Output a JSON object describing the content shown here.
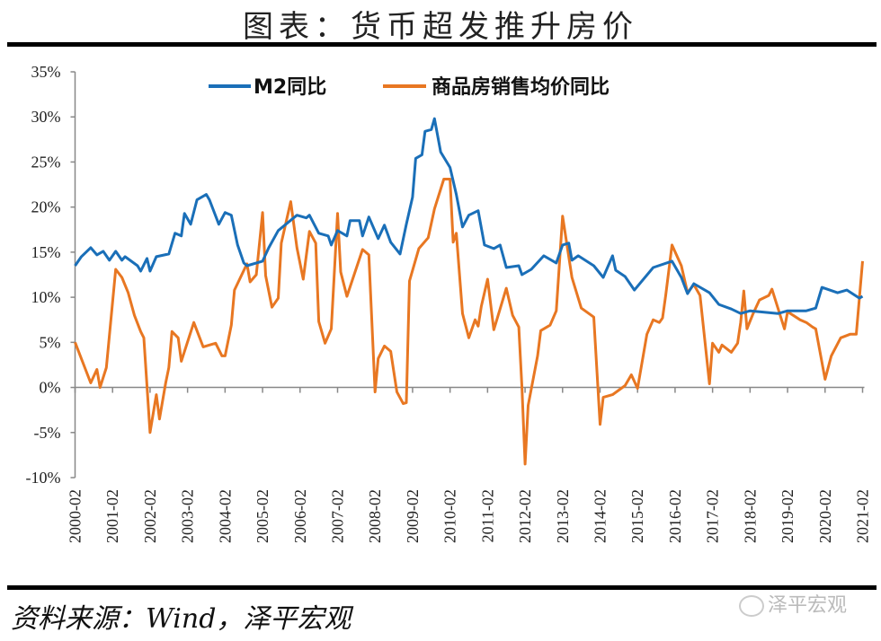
{
  "title": "图表：货币超发推升房价",
  "footer": {
    "source": "资料来源：Wind，泽平宏观",
    "watermark": "泽平宏观",
    "watermark_icon": "wechat-icon"
  },
  "chart_data": {
    "type": "line",
    "title": "",
    "xlabel": "",
    "ylabel": "",
    "ylim": [
      -10,
      35
    ],
    "yticks": [
      "-10%",
      "-5%",
      "0%",
      "5%",
      "10%",
      "15%",
      "20%",
      "25%",
      "30%",
      "35%"
    ],
    "ytick_values": [
      -10,
      -5,
      0,
      5,
      10,
      15,
      20,
      25,
      30,
      35
    ],
    "xticks": [
      "2000-02",
      "2001-02",
      "2002-02",
      "2003-02",
      "2004-02",
      "2005-02",
      "2006-02",
      "2007-02",
      "2008-02",
      "2009-02",
      "2010-02",
      "2011-02",
      "2012-02",
      "2013-02",
      "2014-02",
      "2015-02",
      "2016-02",
      "2017-02",
      "2018-02",
      "2019-02",
      "2020-02",
      "2021-02"
    ],
    "grid": false,
    "legend": "top",
    "colors": {
      "m2": "#1a6fb8",
      "price": "#e87722"
    },
    "series": [
      {
        "name": "M2同比",
        "color": "#1a6fb8",
        "points": [
          [
            "2000-02",
            13.5
          ],
          [
            "2000-04",
            14.5
          ],
          [
            "2000-07",
            15.5
          ],
          [
            "2000-09",
            14.7
          ],
          [
            "2000-11",
            15.1
          ],
          [
            "2001-01",
            14.1
          ],
          [
            "2001-03",
            15.1
          ],
          [
            "2001-05",
            14.1
          ],
          [
            "2001-06",
            14.5
          ],
          [
            "2001-10",
            13.5
          ],
          [
            "2001-11",
            12.9
          ],
          [
            "2002-01",
            14.3
          ],
          [
            "2002-02",
            12.9
          ],
          [
            "2002-04",
            14.5
          ],
          [
            "2002-08",
            14.8
          ],
          [
            "2002-10",
            17.1
          ],
          [
            "2002-12",
            16.8
          ],
          [
            "2003-01",
            19.3
          ],
          [
            "2003-03",
            18.1
          ],
          [
            "2003-05",
            20.8
          ],
          [
            "2003-08",
            21.4
          ],
          [
            "2003-09",
            20.8
          ],
          [
            "2003-12",
            18.1
          ],
          [
            "2004-02",
            19.4
          ],
          [
            "2004-04",
            19.1
          ],
          [
            "2004-06",
            15.8
          ],
          [
            "2004-08",
            13.8
          ],
          [
            "2004-09",
            13.5
          ],
          [
            "2005-02",
            14.0
          ],
          [
            "2005-04",
            15.5
          ],
          [
            "2005-07",
            17.4
          ],
          [
            "2006-01",
            19.1
          ],
          [
            "2006-04",
            18.8
          ],
          [
            "2006-05",
            19.1
          ],
          [
            "2006-08",
            17.1
          ],
          [
            "2006-11",
            16.8
          ],
          [
            "2006-12",
            15.8
          ],
          [
            "2007-02",
            17.4
          ],
          [
            "2007-05",
            16.8
          ],
          [
            "2007-06",
            18.5
          ],
          [
            "2007-09",
            18.5
          ],
          [
            "2007-10",
            16.8
          ],
          [
            "2007-12",
            18.9
          ],
          [
            "2008-03",
            16.5
          ],
          [
            "2008-05",
            18.0
          ],
          [
            "2008-07",
            16.1
          ],
          [
            "2008-10",
            14.8
          ],
          [
            "2008-12",
            18.1
          ],
          [
            "2009-02",
            21.1
          ],
          [
            "2009-03",
            25.4
          ],
          [
            "2009-05",
            25.8
          ],
          [
            "2009-06",
            28.4
          ],
          [
            "2009-08",
            28.6
          ],
          [
            "2009-09",
            29.8
          ],
          [
            "2009-11",
            26.1
          ],
          [
            "2010-02",
            24.4
          ],
          [
            "2010-04",
            21.4
          ],
          [
            "2010-06",
            17.8
          ],
          [
            "2010-08",
            19.1
          ],
          [
            "2010-11",
            19.6
          ],
          [
            "2011-01",
            15.8
          ],
          [
            "2011-04",
            15.4
          ],
          [
            "2011-06",
            15.8
          ],
          [
            "2011-08",
            13.3
          ],
          [
            "2011-12",
            13.5
          ],
          [
            "2012-01",
            12.5
          ],
          [
            "2012-04",
            13.1
          ],
          [
            "2012-08",
            14.6
          ],
          [
            "2012-12",
            13.8
          ],
          [
            "2013-02",
            15.8
          ],
          [
            "2013-04",
            16.0
          ],
          [
            "2013-05",
            14.1
          ],
          [
            "2013-07",
            14.6
          ],
          [
            "2013-12",
            13.5
          ],
          [
            "2014-03",
            12.2
          ],
          [
            "2014-06",
            14.6
          ],
          [
            "2014-07",
            13.0
          ],
          [
            "2014-10",
            12.3
          ],
          [
            "2015-01",
            10.8
          ],
          [
            "2015-07",
            13.3
          ],
          [
            "2016-01",
            14.0
          ],
          [
            "2016-04",
            12.2
          ],
          [
            "2016-06",
            10.4
          ],
          [
            "2016-08",
            11.5
          ],
          [
            "2017-01",
            10.5
          ],
          [
            "2017-04",
            9.2
          ],
          [
            "2017-08",
            8.7
          ],
          [
            "2017-11",
            8.2
          ],
          [
            "2018-02",
            8.5
          ],
          [
            "2018-11",
            8.2
          ],
          [
            "2019-02",
            8.5
          ],
          [
            "2019-08",
            8.5
          ],
          [
            "2019-11",
            8.8
          ],
          [
            "2020-01",
            11.1
          ],
          [
            "2020-06",
            10.5
          ],
          [
            "2020-09",
            10.8
          ],
          [
            "2021-01",
            9.9
          ],
          [
            "2021-02",
            10.1
          ]
        ]
      },
      {
        "name": "商品房销售均价同比",
        "color": "#e87722",
        "points": [
          [
            "2000-02",
            5.0
          ],
          [
            "2000-07",
            0.5
          ],
          [
            "2000-09",
            2.0
          ],
          [
            "2000-10",
            0.0
          ],
          [
            "2000-12",
            2.2
          ],
          [
            "2001-03",
            13.1
          ],
          [
            "2001-05",
            12.2
          ],
          [
            "2001-07",
            10.5
          ],
          [
            "2001-09",
            8.0
          ],
          [
            "2001-11",
            6.2
          ],
          [
            "2001-12",
            5.5
          ],
          [
            "2002-02",
            -5.0
          ],
          [
            "2002-04",
            -0.8
          ],
          [
            "2002-05",
            -3.5
          ],
          [
            "2002-07",
            0.5
          ],
          [
            "2002-08",
            2.2
          ],
          [
            "2002-09",
            6.2
          ],
          [
            "2002-11",
            5.5
          ],
          [
            "2002-12",
            2.9
          ],
          [
            "2003-04",
            7.2
          ],
          [
            "2003-07",
            4.5
          ],
          [
            "2003-09",
            4.7
          ],
          [
            "2003-11",
            4.9
          ],
          [
            "2004-01",
            3.5
          ],
          [
            "2004-02",
            3.5
          ],
          [
            "2004-04",
            6.9
          ],
          [
            "2004-05",
            10.8
          ],
          [
            "2004-09",
            13.7
          ],
          [
            "2004-10",
            11.7
          ],
          [
            "2004-12",
            12.5
          ],
          [
            "2005-02",
            19.4
          ],
          [
            "2005-03",
            12.4
          ],
          [
            "2005-05",
            8.9
          ],
          [
            "2005-07",
            9.9
          ],
          [
            "2005-08",
            16.0
          ],
          [
            "2005-11",
            20.6
          ],
          [
            "2006-01",
            15.5
          ],
          [
            "2006-03",
            12.0
          ],
          [
            "2006-05",
            17.3
          ],
          [
            "2006-07",
            16.0
          ],
          [
            "2006-08",
            7.3
          ],
          [
            "2006-10",
            4.9
          ],
          [
            "2006-12",
            6.5
          ],
          [
            "2007-02",
            19.3
          ],
          [
            "2007-03",
            12.8
          ],
          [
            "2007-05",
            10.1
          ],
          [
            "2007-10",
            15.3
          ],
          [
            "2007-12",
            14.7
          ],
          [
            "2008-02",
            -0.5
          ],
          [
            "2008-03",
            3.2
          ],
          [
            "2008-05",
            4.6
          ],
          [
            "2008-07",
            4.0
          ],
          [
            "2008-09",
            -0.5
          ],
          [
            "2008-11",
            -1.8
          ],
          [
            "2008-12",
            -1.7
          ],
          [
            "2009-01",
            11.8
          ],
          [
            "2009-04",
            15.4
          ],
          [
            "2009-07",
            16.6
          ],
          [
            "2009-09",
            19.8
          ],
          [
            "2009-12",
            23.1
          ],
          [
            "2010-02",
            23.1
          ],
          [
            "2010-03",
            16.1
          ],
          [
            "2010-04",
            17.1
          ],
          [
            "2010-06",
            8.2
          ],
          [
            "2010-08",
            5.5
          ],
          [
            "2010-10",
            7.5
          ],
          [
            "2010-11",
            6.8
          ],
          [
            "2010-12",
            9.0
          ],
          [
            "2011-02",
            12.0
          ],
          [
            "2011-04",
            6.4
          ],
          [
            "2011-08",
            11.0
          ],
          [
            "2011-10",
            8.0
          ],
          [
            "2011-12",
            6.7
          ],
          [
            "2012-01",
            0.0
          ],
          [
            "2012-02",
            -8.5
          ],
          [
            "2012-03",
            -2.0
          ],
          [
            "2012-06",
            3.5
          ],
          [
            "2012-07",
            6.3
          ],
          [
            "2012-10",
            6.9
          ],
          [
            "2012-12",
            8.5
          ],
          [
            "2013-02",
            19.0
          ],
          [
            "2013-05",
            12.2
          ],
          [
            "2013-08",
            8.8
          ],
          [
            "2013-12",
            7.8
          ],
          [
            "2014-02",
            -4.1
          ],
          [
            "2014-03",
            -1.1
          ],
          [
            "2014-06",
            -0.8
          ],
          [
            "2014-10",
            0.2
          ],
          [
            "2014-12",
            1.4
          ],
          [
            "2015-02",
            -0.1
          ],
          [
            "2015-05",
            5.9
          ],
          [
            "2015-07",
            7.5
          ],
          [
            "2015-09",
            7.2
          ],
          [
            "2015-10",
            7.7
          ],
          [
            "2015-11",
            10.2
          ],
          [
            "2016-01",
            15.8
          ],
          [
            "2016-04",
            13.5
          ],
          [
            "2016-06",
            10.5
          ],
          [
            "2016-08",
            11.4
          ],
          [
            "2016-10",
            10.2
          ],
          [
            "2017-01",
            0.4
          ],
          [
            "2017-02",
            4.9
          ],
          [
            "2017-04",
            3.9
          ],
          [
            "2017-05",
            4.7
          ],
          [
            "2017-08",
            3.9
          ],
          [
            "2017-10",
            4.9
          ],
          [
            "2017-11",
            7.2
          ],
          [
            "2017-12",
            10.7
          ],
          [
            "2018-01",
            6.5
          ],
          [
            "2018-03",
            8.2
          ],
          [
            "2018-05",
            9.7
          ],
          [
            "2018-08",
            10.2
          ],
          [
            "2018-09",
            10.9
          ],
          [
            "2019-01",
            6.5
          ],
          [
            "2019-02",
            8.4
          ],
          [
            "2019-06",
            7.5
          ],
          [
            "2019-08",
            7.2
          ],
          [
            "2019-10",
            6.7
          ],
          [
            "2019-11",
            6.5
          ],
          [
            "2020-02",
            0.9
          ],
          [
            "2020-04",
            3.5
          ],
          [
            "2020-07",
            5.5
          ],
          [
            "2020-10",
            5.9
          ],
          [
            "2020-12",
            5.9
          ],
          [
            "2021-02",
            14.0
          ]
        ]
      }
    ]
  }
}
